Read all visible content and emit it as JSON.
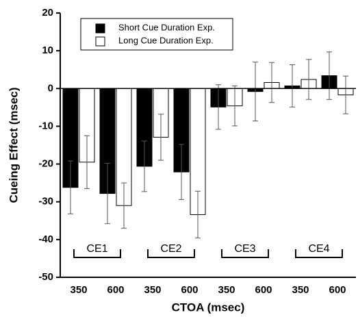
{
  "chart_data": {
    "type": "bar",
    "x_label": "CTOA (msec)",
    "y_label": "Cueing Effect (msec)",
    "categories": [
      "350",
      "600",
      "350",
      "600",
      "350",
      "600",
      "350",
      "600"
    ],
    "groups": [
      "CE1",
      "CE2",
      "CE3",
      "CE4"
    ],
    "series": [
      {
        "name": "Short Cue Duration Exp.",
        "color": "#000000",
        "values": [
          -26.2,
          -27.8,
          -20.6,
          -22.1,
          -4.9,
          -0.8,
          0.7,
          3.4
        ],
        "errors": [
          7,
          8,
          6.7,
          7.3,
          5.9,
          7.8,
          5.6,
          6.3
        ]
      },
      {
        "name": "Long Cue Duration Exp.",
        "color": "#ffffff",
        "values": [
          -19.5,
          -31,
          -12.9,
          -33.4,
          -4.6,
          1.6,
          2.4,
          -1.7
        ],
        "errors": [
          7,
          6,
          6.1,
          6.2,
          5.3,
          5.3,
          5.3,
          5
        ]
      }
    ],
    "ylim": [
      -50,
      20
    ],
    "yticks": [
      -50,
      -40,
      -30,
      -20,
      -10,
      0,
      10,
      20
    ]
  }
}
